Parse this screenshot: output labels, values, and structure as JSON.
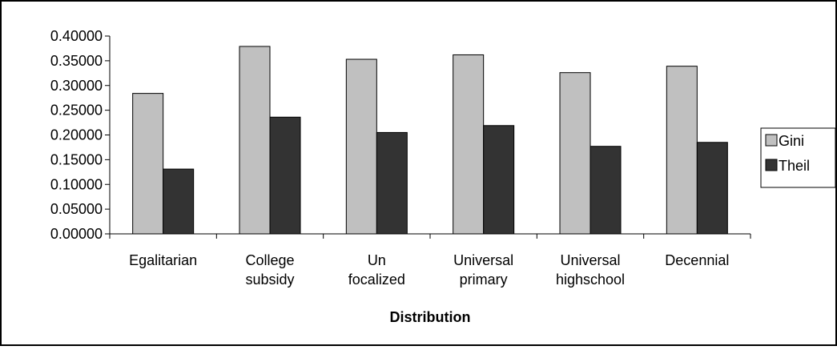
{
  "chart_data": {
    "type": "bar",
    "title": "",
    "xlabel": "Distribution",
    "ylabel": "",
    "ylim": [
      0,
      0.4
    ],
    "ytick_values": [
      0,
      0.05,
      0.1,
      0.15,
      0.2,
      0.25,
      0.3,
      0.35,
      0.4
    ],
    "ytick_labels": [
      "0.00000",
      "0.05000",
      "0.10000",
      "0.15000",
      "0.20000",
      "0.25000",
      "0.30000",
      "0.35000",
      "0.40000"
    ],
    "categories": [
      [
        "Egalitarian"
      ],
      [
        "College",
        "subsidy"
      ],
      [
        "Un",
        "focalized"
      ],
      [
        "Universal",
        "primary"
      ],
      [
        "Universal",
        "highschool"
      ],
      [
        "Decennial"
      ]
    ],
    "series": [
      {
        "name": "Gini",
        "color": "#c0c0c0",
        "values": [
          0.284,
          0.379,
          0.353,
          0.362,
          0.326,
          0.339
        ]
      },
      {
        "name": "Theil",
        "color": "#333333",
        "values": [
          0.131,
          0.236,
          0.205,
          0.219,
          0.177,
          0.185
        ]
      }
    ],
    "grid": false,
    "legend_position": "right"
  }
}
